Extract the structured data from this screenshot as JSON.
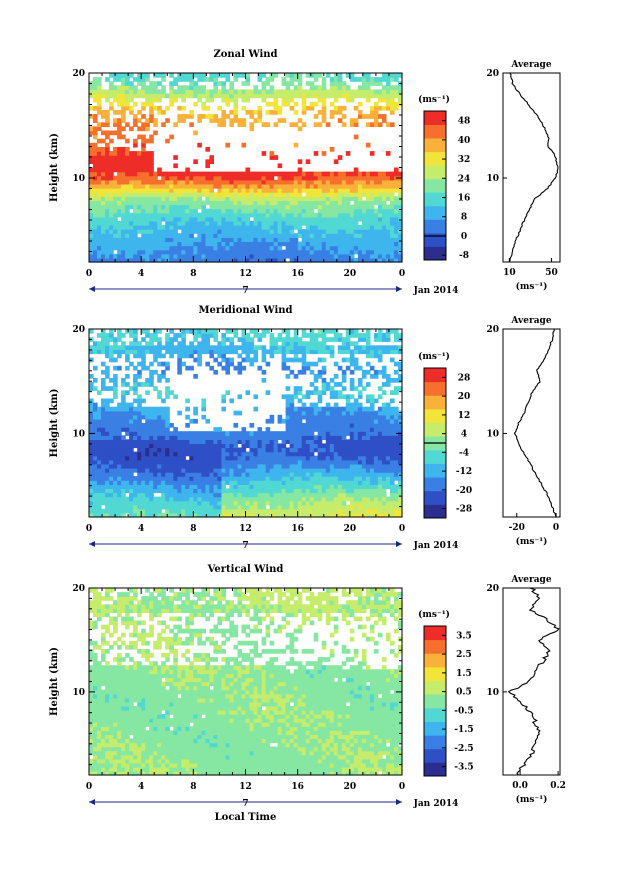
{
  "figure": {
    "date_label": "Jan 2014",
    "day_label": "7",
    "xlabel": "Local Time",
    "ylabel": "Height (km)",
    "unit_label": "(ms⁻¹)",
    "avg_title": "Average"
  },
  "chart_data": [
    {
      "type": "heatmap",
      "title": "Zonal Wind",
      "xlabel": "",
      "ylabel": "Height (km)",
      "x_ticks": [
        "0",
        "4",
        "8",
        "12",
        "16",
        "20",
        "0"
      ],
      "y_ticks": [
        "10",
        "20"
      ],
      "xlim": [
        0,
        24
      ],
      "ylim": [
        2,
        20
      ],
      "colorbar": {
        "ticks": [
          "-8",
          "0",
          "8",
          "16",
          "24",
          "32",
          "40",
          "48"
        ],
        "range": [
          -10,
          52
        ],
        "contour": 0
      },
      "field_profile": {
        "heights": [
          2,
          4,
          6,
          8,
          9,
          10,
          11,
          12,
          13,
          14,
          15,
          16,
          17,
          18,
          19,
          20
        ],
        "values": [
          4,
          8,
          14,
          24,
          36,
          46,
          52,
          50,
          44,
          42,
          40,
          38,
          32,
          26,
          20,
          16
        ]
      },
      "avg_profile": {
        "heights": [
          2,
          4,
          6,
          8,
          9,
          10,
          11,
          12,
          13,
          14,
          15,
          16,
          17,
          18,
          19,
          20
        ],
        "values": [
          10,
          16,
          24,
          34,
          46,
          54,
          56,
          54,
          47,
          47,
          42,
          36,
          28,
          20,
          13,
          11
        ]
      },
      "avg_xticks": [
        "10",
        "50"
      ],
      "avg_xlim": [
        4,
        58
      ]
    },
    {
      "type": "heatmap",
      "title": "Meridional Wind",
      "xlabel": "",
      "ylabel": "Height (km)",
      "x_ticks": [
        "0",
        "4",
        "8",
        "12",
        "16",
        "20",
        "0"
      ],
      "y_ticks": [
        "10",
        "20"
      ],
      "xlim": [
        0,
        24
      ],
      "ylim": [
        2,
        20
      ],
      "colorbar": {
        "ticks": [
          "-28",
          "-20",
          "-12",
          "-4",
          "4",
          "12",
          "20",
          "28"
        ],
        "range": [
          -32,
          32
        ],
        "contour": 0
      },
      "field_profile": {
        "heights": [
          2,
          4,
          6,
          8,
          9,
          10,
          11,
          12,
          13,
          14,
          15,
          16,
          17,
          18,
          19,
          20
        ],
        "values": [
          -4,
          -10,
          -18,
          -24,
          -22,
          -18,
          -16,
          -14,
          -10,
          -8,
          -12,
          -16,
          -12,
          -10,
          -8,
          -6
        ]
      },
      "avg_profile": {
        "heights": [
          2,
          4,
          6,
          8,
          9,
          10,
          11,
          12,
          13,
          14,
          15,
          16,
          17,
          18,
          19,
          20
        ],
        "values": [
          0,
          -4,
          -10,
          -16,
          -19,
          -21,
          -19,
          -16,
          -14,
          -12,
          -8,
          -10,
          -6,
          -4,
          -2,
          -1
        ]
      },
      "avg_xticks": [
        "-20",
        "0"
      ],
      "avg_xlim": [
        -27,
        2
      ]
    },
    {
      "type": "heatmap",
      "title": "Vertical Wind",
      "xlabel": "Local Time",
      "ylabel": "Height (km)",
      "x_ticks": [
        "0",
        "4",
        "8",
        "12",
        "16",
        "20",
        "0"
      ],
      "y_ticks": [
        "10",
        "20"
      ],
      "xlim": [
        0,
        24
      ],
      "ylim": [
        2,
        20
      ],
      "colorbar": {
        "ticks": [
          "-3.5",
          "-2.5",
          "-1.5",
          "-0.5",
          "0.5",
          "1.5",
          "2.5",
          "3.5"
        ],
        "range": [
          -4,
          4
        ]
      },
      "field_profile": {
        "heights": [
          2,
          6,
          10,
          14,
          18,
          20
        ],
        "values": [
          0.2,
          0.1,
          0.1,
          0.2,
          0.4,
          0.5
        ]
      },
      "avg_profile": {
        "heights": [
          2,
          4,
          6,
          8,
          10,
          11,
          12,
          13,
          14,
          15,
          16,
          17,
          18,
          19,
          20
        ],
        "values": [
          -0.02,
          0.06,
          0.1,
          0.06,
          -0.05,
          0.04,
          0.08,
          0.12,
          0.16,
          0.1,
          0.2,
          0.14,
          0.05,
          0.1,
          0.06
        ]
      },
      "avg_xticks": [
        "0.0",
        "0.2"
      ],
      "avg_xlim": [
        -0.09,
        0.21
      ]
    }
  ]
}
